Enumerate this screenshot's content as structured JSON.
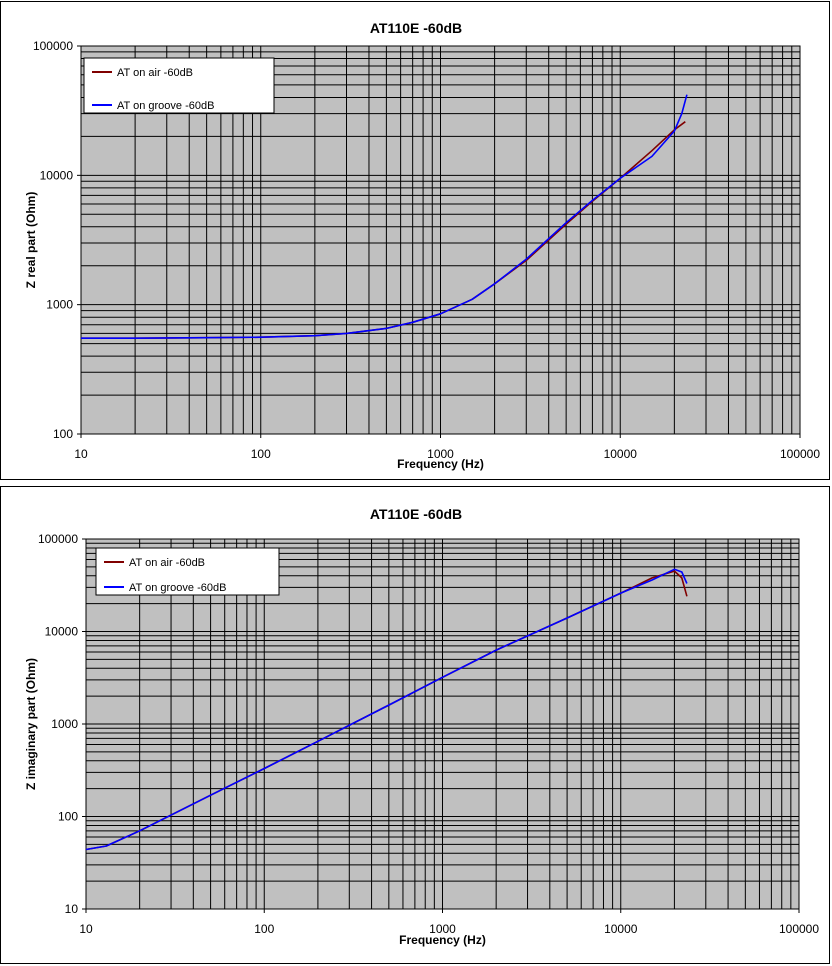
{
  "chart_data": [
    {
      "type": "line",
      "title": "AT110E -60dB",
      "xlabel": "Frequency (Hz)",
      "ylabel": "Z real part (Ohm)",
      "xscale": "log",
      "yscale": "log",
      "xlim": [
        10,
        100000
      ],
      "ylim": [
        100,
        100000
      ],
      "x_tick_labels": [
        "10",
        "100",
        "1000",
        "10000",
        "100000"
      ],
      "y_tick_labels": [
        "100",
        "1000",
        "10000",
        "100000"
      ],
      "grid": true,
      "plot_background": "#c0c0c0",
      "legend_position": "top-left",
      "series": [
        {
          "name": "AT on air -60dB",
          "color": "#800000",
          "x": [
            10,
            20,
            50,
            100,
            200,
            300,
            500,
            700,
            1000,
            1500,
            2000,
            3000,
            5000,
            7000,
            10000,
            15000,
            20000,
            23000
          ],
          "y": [
            550,
            550,
            555,
            560,
            575,
            600,
            655,
            730,
            850,
            1100,
            1450,
            2200,
            4200,
            6300,
            9500,
            15500,
            22500,
            26000
          ]
        },
        {
          "name": "AT on groove -60dB",
          "color": "#0000ff",
          "x": [
            10,
            20,
            50,
            100,
            200,
            300,
            500,
            700,
            1000,
            1500,
            2000,
            3000,
            5000,
            7000,
            10000,
            15000,
            20000,
            22000,
            23500
          ],
          "y": [
            550,
            550,
            555,
            560,
            575,
            600,
            655,
            730,
            850,
            1100,
            1450,
            2250,
            4300,
            6400,
            9500,
            14000,
            22000,
            30000,
            42000
          ]
        }
      ]
    },
    {
      "type": "line",
      "title": "AT110E -60dB",
      "xlabel": "Frequency (Hz)",
      "ylabel": "Z imaginary part (Ohm)",
      "xscale": "log",
      "yscale": "log",
      "xlim": [
        10,
        100000
      ],
      "ylim": [
        10,
        100000
      ],
      "x_tick_labels": [
        "10",
        "100",
        "1000",
        "10000",
        "100000"
      ],
      "y_tick_labels": [
        "10",
        "100",
        "1000",
        "10000",
        "100000"
      ],
      "grid": true,
      "plot_background": "#c0c0c0",
      "legend_position": "top-left",
      "series": [
        {
          "name": "AT on air -60dB",
          "color": "#800000",
          "x": [
            10,
            13,
            20,
            50,
            100,
            200,
            500,
            1000,
            2000,
            5000,
            10000,
            15000,
            20000,
            22000,
            23500
          ],
          "y": [
            44,
            48,
            70,
            170,
            330,
            650,
            1600,
            3200,
            6300,
            14000,
            26000,
            38000,
            45000,
            38000,
            24000
          ]
        },
        {
          "name": "AT on groove -60dB",
          "color": "#0000ff",
          "x": [
            10,
            13,
            20,
            50,
            100,
            200,
            500,
            1000,
            2000,
            5000,
            10000,
            15000,
            20000,
            22000,
            23500
          ],
          "y": [
            44,
            48,
            70,
            170,
            330,
            650,
            1600,
            3200,
            6300,
            14000,
            26000,
            36000,
            47000,
            44000,
            33000
          ]
        }
      ]
    }
  ]
}
